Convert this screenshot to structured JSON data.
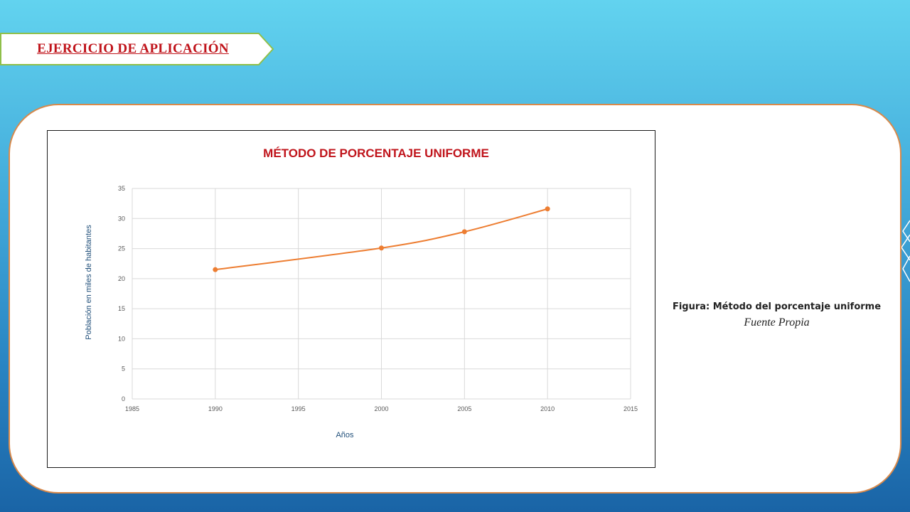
{
  "banner": {
    "title": "EJERCICIO DE APLICACIÓN"
  },
  "caption": {
    "figure": "Figura: Método del porcentaje uniforme",
    "source": "Fuente Propia"
  },
  "colors": {
    "series": "#ed7d31",
    "title": "#c0141b",
    "card_border": "#d9894a"
  },
  "chart_data": {
    "type": "scatter",
    "title": "MÉTODO DE PORCENTAJE UNIFORME",
    "xlabel": "Años",
    "ylabel": "Población en miles de habitantes",
    "xlim": [
      1985,
      2015
    ],
    "ylim": [
      0,
      35
    ],
    "xticks": [
      1985,
      1990,
      1995,
      2000,
      2005,
      2010,
      2015
    ],
    "yticks": [
      0,
      5,
      10,
      15,
      20,
      25,
      30,
      35
    ],
    "grid": true,
    "smooth_line": true,
    "series": [
      {
        "x": [
          1990,
          2000,
          2005,
          2010
        ],
        "y": [
          21.5,
          25.1,
          27.8,
          31.6
        ]
      }
    ]
  }
}
